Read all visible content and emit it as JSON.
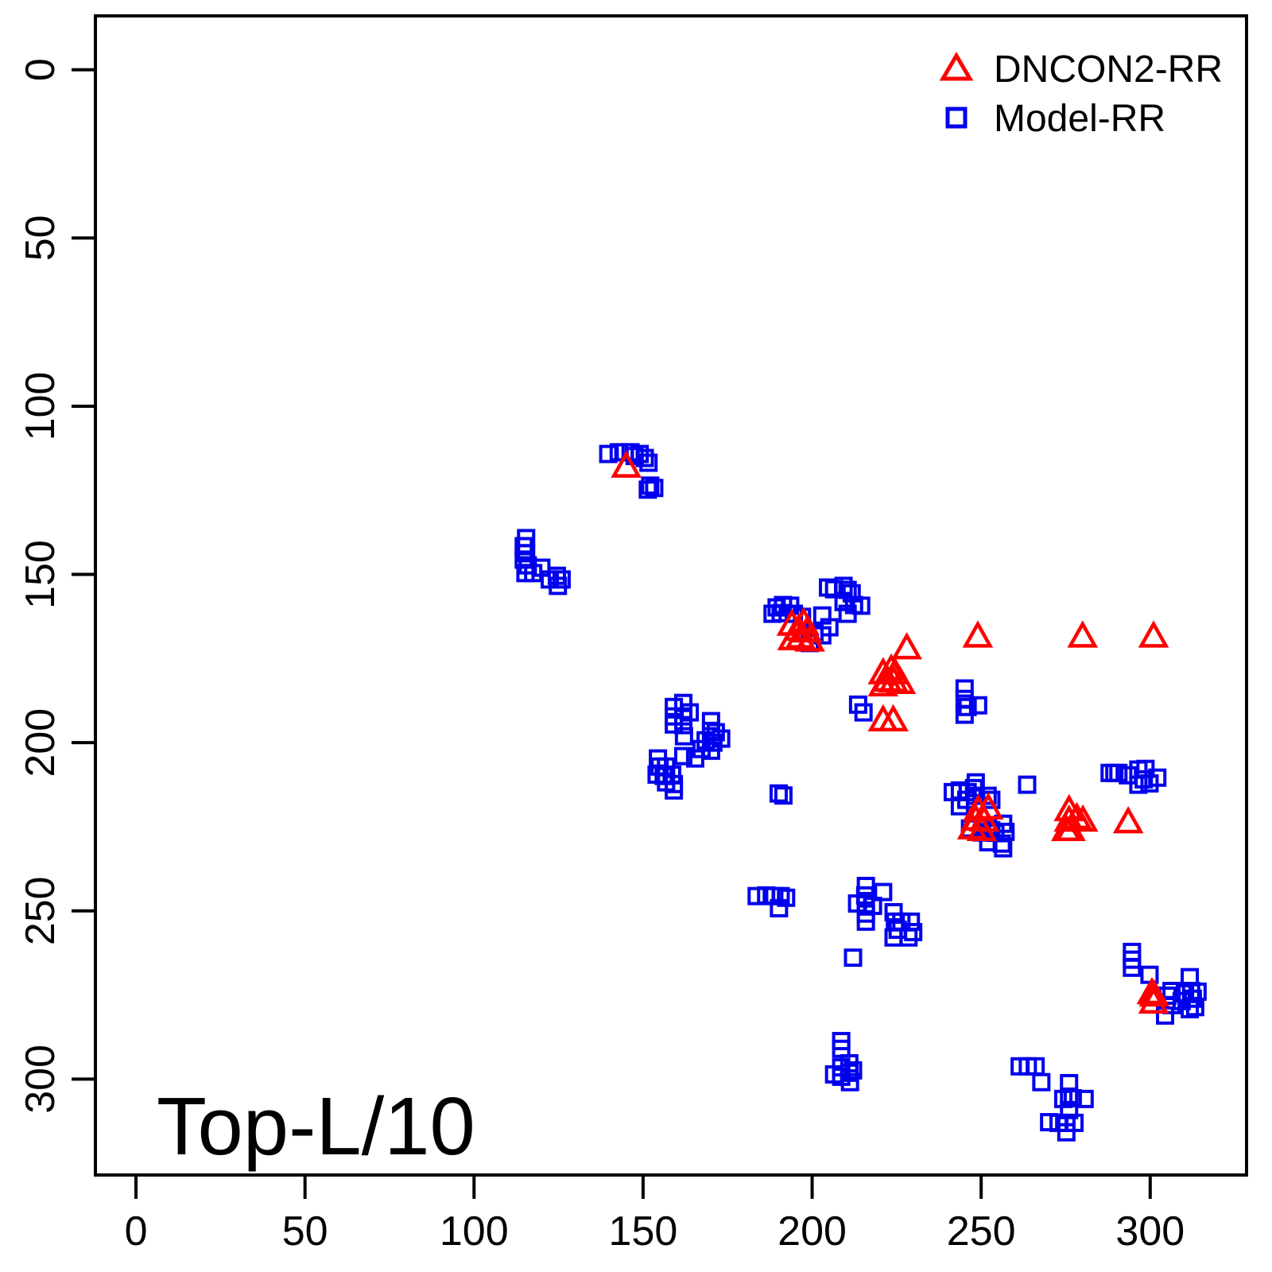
{
  "title": "Top-L/10",
  "legend": {
    "items": [
      {
        "label": "DNCON2-RR",
        "marker": "triangle",
        "color": "#FF0000"
      },
      {
        "label": "Model-RR",
        "marker": "square",
        "color": "#0000EE"
      }
    ]
  },
  "chart_data": {
    "type": "scatter",
    "title": "Top-L/10",
    "xlabel": "",
    "ylabel": "",
    "x_ticks": [
      0,
      50,
      100,
      150,
      200,
      250,
      300
    ],
    "y_ticks": [
      0,
      50,
      100,
      150,
      200,
      250,
      300
    ],
    "x_range": [
      -12,
      328.5
    ],
    "y_range": [
      -16,
      328.5
    ],
    "y_axis_inverted": true,
    "grid": false,
    "legend_position": "top-right",
    "series": [
      {
        "name": "DNCON2-RR",
        "marker": "triangle",
        "color": "#FF0000",
        "points": [
          [
            145,
            118
          ],
          [
            194,
            165
          ],
          [
            196,
            166.5
          ],
          [
            197.5,
            164.5
          ],
          [
            198.5,
            167
          ],
          [
            196.5,
            168.8
          ],
          [
            194.2,
            169.3
          ],
          [
            199.3,
            169.7
          ],
          [
            249,
            168.5
          ],
          [
            280,
            168.5
          ],
          [
            301,
            168.5
          ],
          [
            228,
            172
          ],
          [
            221,
            179.4
          ],
          [
            223.4,
            178.3
          ],
          [
            224.5,
            179.4
          ],
          [
            222.2,
            181.6
          ],
          [
            224.1,
            181.8
          ],
          [
            221,
            183
          ],
          [
            226.2,
            182.3
          ],
          [
            221,
            193.4
          ],
          [
            224,
            193.4
          ],
          [
            249.1,
            220.1
          ],
          [
            252.1,
            219.6
          ],
          [
            248.4,
            222.9
          ],
          [
            250.9,
            223.2
          ],
          [
            247.4,
            225.5
          ],
          [
            250.2,
            226
          ],
          [
            276,
            220.1
          ],
          [
            276,
            223.2
          ],
          [
            276.4,
            226
          ],
          [
            278.3,
            222.5
          ],
          [
            280.1,
            223.2
          ],
          [
            275.2,
            226
          ],
          [
            293.5,
            223.7
          ],
          [
            300.5,
            274.5
          ],
          [
            301.2,
            275.2
          ],
          [
            301,
            277.3
          ]
        ]
      },
      {
        "name": "Model-RR",
        "marker": "square",
        "color": "#0000EE",
        "points": [
          [
            139.7,
            114.2
          ],
          [
            142.8,
            113.7
          ],
          [
            144.6,
            113.7
          ],
          [
            146.3,
            113.7
          ],
          [
            149,
            114.2
          ],
          [
            150.5,
            115.4
          ],
          [
            151.6,
            116.8
          ],
          [
            152.1,
            123.6
          ],
          [
            153.3,
            124.3
          ],
          [
            151.4,
            124.8
          ],
          [
            147.5,
            114.8
          ],
          [
            115.4,
            139.2
          ],
          [
            114.7,
            141.6
          ],
          [
            115.4,
            143.7
          ],
          [
            114.7,
            145.6
          ],
          [
            115.9,
            147.3
          ],
          [
            115.2,
            149.6
          ],
          [
            117.5,
            149.6
          ],
          [
            119.9,
            148
          ],
          [
            122.4,
            151.5
          ],
          [
            124.5,
            150.4
          ],
          [
            125.9,
            151.5
          ],
          [
            124.8,
            153.4
          ],
          [
            189.5,
            159.8
          ],
          [
            191.4,
            159.1
          ],
          [
            193.5,
            159.3
          ],
          [
            188.3,
            161.7
          ],
          [
            190.7,
            161.5
          ],
          [
            194.6,
            161.7
          ],
          [
            197,
            162.6
          ],
          [
            204.7,
            153.9
          ],
          [
            206.5,
            154.4
          ],
          [
            209.3,
            153.4
          ],
          [
            210.5,
            154.6
          ],
          [
            211.7,
            155.6
          ],
          [
            209.3,
            158.2
          ],
          [
            212.4,
            159.1
          ],
          [
            214.5,
            159.3
          ],
          [
            203,
            162.2
          ],
          [
            205.1,
            165.7
          ],
          [
            203,
            168.1
          ],
          [
            200.7,
            167.4
          ],
          [
            199.3,
            170.4
          ],
          [
            210.5,
            161.7
          ],
          [
            213.6,
            188.7
          ],
          [
            215.2,
            191
          ],
          [
            245.1,
            183.9
          ],
          [
            245.1,
            187
          ],
          [
            246,
            189.4
          ],
          [
            245.1,
            191.7
          ],
          [
            249.1,
            188.9
          ],
          [
            159.1,
            189.4
          ],
          [
            161.9,
            188.2
          ],
          [
            159.1,
            192.2
          ],
          [
            161.9,
            192.2
          ],
          [
            163.8,
            191
          ],
          [
            159.1,
            194.6
          ],
          [
            161.9,
            194.8
          ],
          [
            162.1,
            198.1
          ],
          [
            170.1,
            193.6
          ],
          [
            170.1,
            196.5
          ],
          [
            171.5,
            196.9
          ],
          [
            173.1,
            198.8
          ],
          [
            168.5,
            199.3
          ],
          [
            170.8,
            200
          ],
          [
            167.3,
            201.9
          ],
          [
            170.1,
            202.4
          ],
          [
            161.9,
            204
          ],
          [
            165.4,
            204.7
          ],
          [
            154.4,
            204.7
          ],
          [
            154.9,
            207.1
          ],
          [
            156.8,
            207.1
          ],
          [
            154,
            209.5
          ],
          [
            156.1,
            209.9
          ],
          [
            158.6,
            209.5
          ],
          [
            156.8,
            211.8
          ],
          [
            159.1,
            212.3
          ],
          [
            159.1,
            214.2
          ],
          [
            190.1,
            215.1
          ],
          [
            191.5,
            215.7
          ],
          [
            241.6,
            214.7
          ],
          [
            243.7,
            214.2
          ],
          [
            246,
            214.7
          ],
          [
            247.9,
            213.5
          ],
          [
            248.4,
            215.8
          ],
          [
            245.6,
            217
          ],
          [
            243.7,
            218.9
          ],
          [
            251.9,
            215.8
          ],
          [
            253,
            217
          ],
          [
            248.4,
            211.8
          ],
          [
            246.7,
            225.5
          ],
          [
            250.2,
            226.7
          ],
          [
            253,
            226
          ],
          [
            256.5,
            224.1
          ],
          [
            257.2,
            226.5
          ],
          [
            252.1,
            229.6
          ],
          [
            256.1,
            230
          ],
          [
            256.5,
            231.4
          ],
          [
            251.9,
            224.8
          ],
          [
            254.2,
            226.8
          ],
          [
            263.6,
            212.5
          ],
          [
            288,
            209
          ],
          [
            289.4,
            209
          ],
          [
            290.6,
            209
          ],
          [
            293.4,
            209.7
          ],
          [
            296.5,
            208
          ],
          [
            298.6,
            207.8
          ],
          [
            298.1,
            210.9
          ],
          [
            296.5,
            212.5
          ],
          [
            299.8,
            212.1
          ],
          [
            302.1,
            210.4
          ],
          [
            183.6,
            245.6
          ],
          [
            186.4,
            245.4
          ],
          [
            188.8,
            245.6
          ],
          [
            190.7,
            245.6
          ],
          [
            192.3,
            246.1
          ],
          [
            190.2,
            249.2
          ],
          [
            215.9,
            242.6
          ],
          [
            215.7,
            245.4
          ],
          [
            213.3,
            247.8
          ],
          [
            215.9,
            248
          ],
          [
            218,
            248.5
          ],
          [
            215.9,
            250.8
          ],
          [
            221,
            244.4
          ],
          [
            215.9,
            253.2
          ],
          [
            224.1,
            250.4
          ],
          [
            224.5,
            253.2
          ],
          [
            226.4,
            253.2
          ],
          [
            225.3,
            255.6
          ],
          [
            229.2,
            253.2
          ],
          [
            229.9,
            256.3
          ],
          [
            224.1,
            257.9
          ],
          [
            228.5,
            257.9
          ],
          [
            212.1,
            263.9
          ],
          [
            294.6,
            262.2
          ],
          [
            294.6,
            264.5
          ],
          [
            294.6,
            266.9
          ],
          [
            299.8,
            269
          ],
          [
            311.7,
            269.7
          ],
          [
            310.3,
            274.5
          ],
          [
            312.1,
            273.8
          ],
          [
            314,
            274
          ],
          [
            306.3,
            273.8
          ],
          [
            305.1,
            275.2
          ],
          [
            312.6,
            276.1
          ],
          [
            306.3,
            278
          ],
          [
            313.3,
            278.6
          ],
          [
            309.3,
            276.8
          ],
          [
            304.4,
            281.1
          ],
          [
            311.7,
            279.2
          ],
          [
            208.6,
            288.7
          ],
          [
            208.6,
            291
          ],
          [
            211,
            295.3
          ],
          [
            208.6,
            296.5
          ],
          [
            206.5,
            298.6
          ],
          [
            211,
            298.1
          ],
          [
            212.1,
            297.4
          ],
          [
            211.2,
            300.9
          ],
          [
            208.6,
            299.3
          ],
          [
            261.4,
            296.2
          ],
          [
            263.8,
            296.2
          ],
          [
            266.1,
            296.2
          ],
          [
            267.8,
            300.9
          ],
          [
            276,
            301.2
          ],
          [
            276,
            305.2
          ],
          [
            277.1,
            305.7
          ],
          [
            274.3,
            305.9
          ],
          [
            280.6,
            305.9
          ],
          [
            276,
            309.2
          ],
          [
            270.1,
            312.8
          ],
          [
            272.9,
            313
          ],
          [
            275.2,
            313
          ],
          [
            277.6,
            313
          ],
          [
            275.2,
            315.8
          ]
        ]
      }
    ]
  }
}
